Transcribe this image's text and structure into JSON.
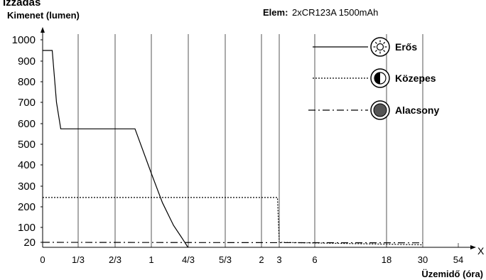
{
  "header": {
    "partial_heading": "Izzadás",
    "battery_label": "Elem:",
    "battery_value": "2xCR123A 1500mAh"
  },
  "chart_data": {
    "type": "line",
    "ylabel": "Kimenet (lumen)",
    "xlabel": "Üzemidő (óra)",
    "x_axis_letter": "X",
    "x_ticks": [
      "0",
      "1/3",
      "2/3",
      "1",
      "4/3",
      "5/3",
      "2",
      "3",
      "6",
      "18",
      "30",
      "54"
    ],
    "x_tick_values": [
      0,
      0.333,
      0.667,
      1,
      1.333,
      1.667,
      2,
      3,
      6,
      18,
      30,
      54
    ],
    "y_ticks": [
      "20",
      "100",
      "200",
      "300",
      "400",
      "500",
      "600",
      "700",
      "800",
      "900",
      "1000"
    ],
    "y_tick_values": [
      20,
      100,
      200,
      300,
      400,
      500,
      600,
      700,
      800,
      900,
      1000
    ],
    "ylim": [
      0,
      1050
    ],
    "grid": "vertical",
    "legend_position": "top-right",
    "series": [
      {
        "name": "Erős",
        "style": "solid",
        "icon": "sun-icon",
        "points": [
          {
            "x": 0,
            "y": 950
          },
          {
            "x": 0.03,
            "y": 950
          },
          {
            "x": 0.09,
            "y": 950
          },
          {
            "x": 0.13,
            "y": 700
          },
          {
            "x": 0.17,
            "y": 575
          },
          {
            "x": 0.85,
            "y": 575
          },
          {
            "x": 1.0,
            "y": 360
          },
          {
            "x": 1.1,
            "y": 220
          },
          {
            "x": 1.2,
            "y": 110
          },
          {
            "x": 1.28,
            "y": 40
          },
          {
            "x": 1.33,
            "y": 0
          }
        ]
      },
      {
        "name": "Közepes",
        "style": "dotted",
        "icon": "half-circle-icon",
        "points": [
          {
            "x": 0,
            "y": 245
          },
          {
            "x": 2.9,
            "y": 245
          },
          {
            "x": 3,
            "y": 20
          },
          {
            "x": 30,
            "y": 10
          }
        ]
      },
      {
        "name": "Alacsony",
        "style": "dash-dot",
        "icon": "filled-circle-icon",
        "points": [
          {
            "x": 0,
            "y": 20
          },
          {
            "x": 30,
            "y": 18
          }
        ]
      }
    ]
  },
  "colors": {
    "line": "#000000",
    "grid": "#555555",
    "icon_fill_dark": "#555555"
  }
}
